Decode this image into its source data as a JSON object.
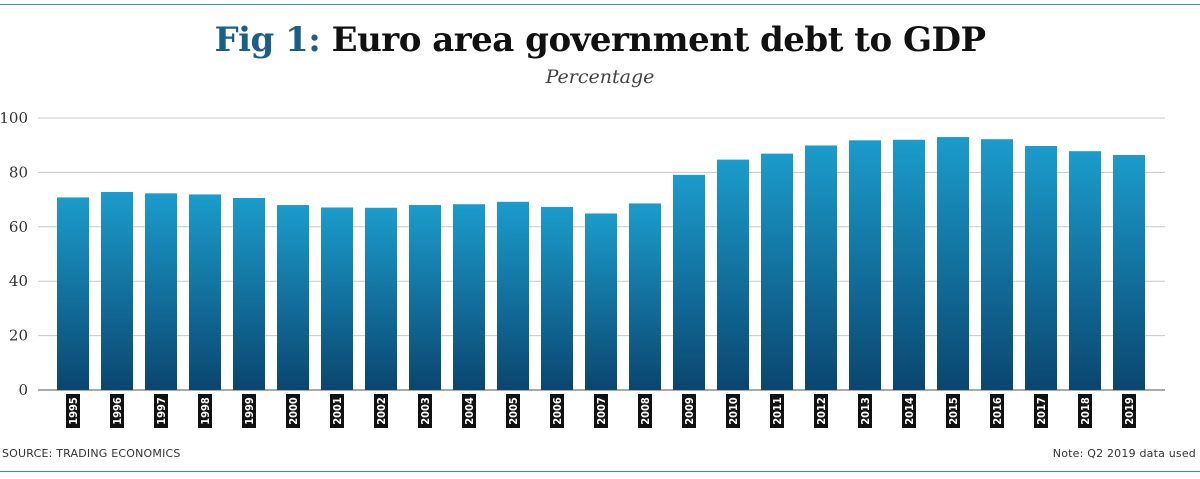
{
  "title": {
    "prefix": "Fig 1:",
    "main": "Euro area government debt to GDP"
  },
  "subtitle": "Percentage",
  "footer": {
    "source": "SOURCE: TRADING ECONOMICS",
    "note": "Note: Q2 2019 data used"
  },
  "colors": {
    "bar_top": "#1b9ccc",
    "bar_bottom": "#0a4670",
    "accent": "#1b5f88",
    "label_bg": "#111111"
  },
  "chart_data": {
    "type": "bar",
    "title": "Euro area government debt to GDP",
    "subtitle": "Percentage",
    "categories": [
      "1995",
      "1996",
      "1997",
      "1998",
      "1999",
      "2000",
      "2001",
      "2002",
      "2003",
      "2004",
      "2005",
      "2006",
      "2007",
      "2008",
      "2009",
      "2010",
      "2011",
      "2012",
      "2013",
      "2014",
      "2015",
      "2016",
      "2017",
      "2018",
      "2019"
    ],
    "values": [
      70.8,
      72.8,
      72.3,
      71.9,
      70.6,
      68.0,
      67.1,
      67.0,
      68.0,
      68.3,
      69.2,
      67.3,
      64.9,
      68.6,
      79.1,
      84.7,
      86.9,
      89.9,
      91.8,
      92.0,
      93.0,
      92.2,
      89.7,
      87.8,
      86.4
    ],
    "yticks": [
      0,
      20,
      40,
      60,
      80,
      100
    ],
    "ylim": [
      0,
      100
    ],
    "grid": true,
    "legend": "none"
  }
}
